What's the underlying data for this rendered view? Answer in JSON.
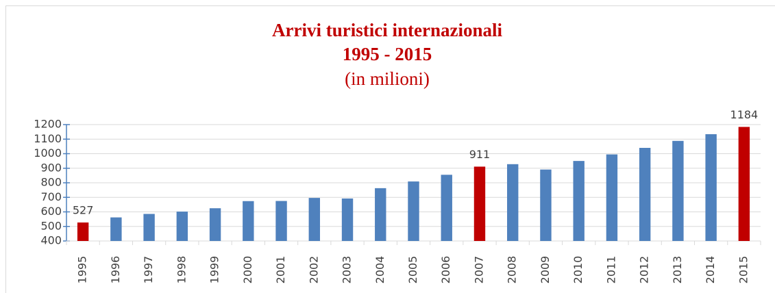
{
  "chart_data": {
    "type": "bar",
    "title": [
      "Arrivi turistici internazionali",
      "1995 - 2015",
      "(in milioni)"
    ],
    "categories": [
      "1995",
      "1996",
      "1997",
      "1998",
      "1999",
      "2000",
      "2001",
      "2002",
      "2003",
      "2004",
      "2005",
      "2006",
      "2007",
      "2008",
      "2009",
      "2010",
      "2011",
      "2012",
      "2013",
      "2014",
      "2015"
    ],
    "values": [
      527,
      562,
      586,
      602,
      625,
      674,
      675,
      696,
      692,
      763,
      809,
      855,
      911,
      928,
      891,
      950,
      995,
      1040,
      1088,
      1134,
      1184
    ],
    "value_labels": [
      "527",
      null,
      null,
      null,
      null,
      null,
      null,
      null,
      null,
      null,
      null,
      null,
      "911",
      null,
      null,
      null,
      null,
      null,
      null,
      null,
      "1184"
    ],
    "colors": [
      "#c00000",
      "#4f81bd",
      "#4f81bd",
      "#4f81bd",
      "#4f81bd",
      "#4f81bd",
      "#4f81bd",
      "#4f81bd",
      "#4f81bd",
      "#4f81bd",
      "#4f81bd",
      "#4f81bd",
      "#c00000",
      "#4f81bd",
      "#4f81bd",
      "#4f81bd",
      "#4f81bd",
      "#4f81bd",
      "#4f81bd",
      "#4f81bd",
      "#c00000"
    ],
    "ylim": [
      400,
      1200
    ],
    "yticks": [
      400,
      500,
      600,
      700,
      800,
      900,
      1000,
      1100,
      1200
    ],
    "grid": true
  }
}
